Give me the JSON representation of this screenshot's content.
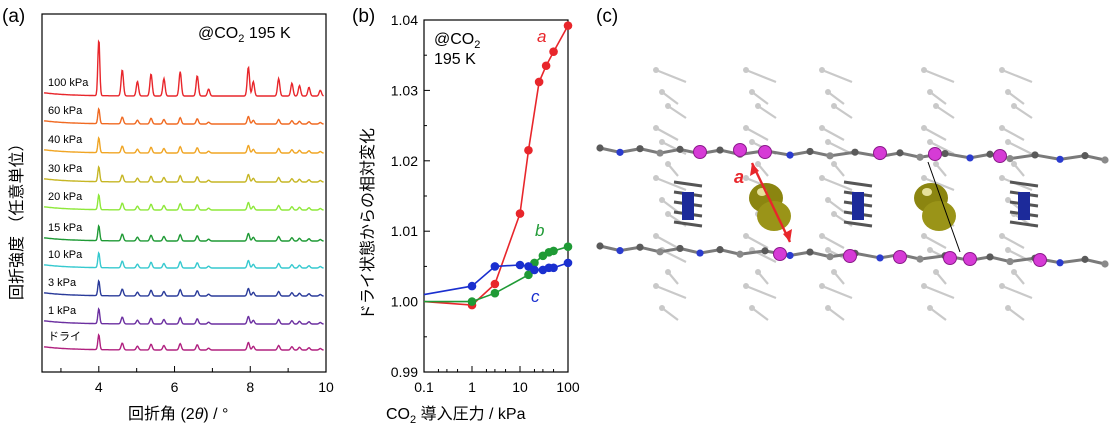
{
  "panels": {
    "a": {
      "label": "(a)",
      "annotation_main": "@CO",
      "annotation_sub": "2",
      "annotation_tail": " 195 K",
      "ylabel": "回折強度 （任意単位）",
      "xlabel_pre": "回折角 (2",
      "xlabel_theta": "θ",
      "xlabel_post": ") / °",
      "x_ticks": [
        "4",
        "6",
        "8",
        "10"
      ],
      "pressures": [
        "100 kPa",
        "60 kPa",
        "40 kPa",
        "30 kPa",
        "20 kPa",
        "15 kPa",
        "10 kPa",
        "3 kPa",
        "1 kPa",
        "ドライ"
      ],
      "trace_colors": [
        "#e8262b",
        "#f06a22",
        "#f0a524",
        "#c6b624",
        "#8ee83a",
        "#1f9a35",
        "#36c9cf",
        "#2a3b9a",
        "#6b2fa0",
        "#b0207f",
        "#e8257a"
      ]
    },
    "b": {
      "label": "(b)",
      "annotation_line1_main": "@CO",
      "annotation_line1_sub": "2",
      "annotation_line2": "195 K",
      "ylabel": "ドライ状態からの相対変化",
      "xlabel_pre": "CO",
      "xlabel_sub": "2",
      "xlabel_post": " 導入圧力 / kPa",
      "y_ticks": [
        "0.99",
        "1.00",
        "1.01",
        "1.02",
        "1.03",
        "1.04"
      ],
      "x_ticks": [
        "0.1",
        "1",
        "10",
        "100"
      ]
    },
    "c": {
      "label": "(c)",
      "arrow_label": "a",
      "arrow_color": "#e8262b"
    }
  },
  "chart_data": {
    "type": "scatter",
    "panel": "b",
    "xscale": "log",
    "xlim": [
      0.1,
      100
    ],
    "ylim": [
      0.99,
      1.04
    ],
    "series": [
      {
        "name": "a",
        "color": "#e8262b",
        "x": [
          0.1,
          1,
          3,
          10,
          15,
          25,
          35,
          50,
          100
        ],
        "y": [
          1.0,
          0.9995,
          1.0025,
          1.0125,
          1.0215,
          1.0312,
          1.0335,
          1.0355,
          1.0392
        ]
      },
      {
        "name": "b",
        "color": "#1f9a35",
        "x": [
          0.1,
          1,
          3,
          15,
          20,
          30,
          40,
          50,
          100
        ],
        "y": [
          1.0,
          1.0,
          1.0012,
          1.0038,
          1.0055,
          1.0065,
          1.007,
          1.0072,
          1.0078
        ]
      },
      {
        "name": "c",
        "color": "#1a2fcf",
        "x": [
          0.1,
          1,
          3,
          10,
          15,
          20,
          30,
          40,
          50,
          100
        ],
        "y": [
          1.001,
          1.0022,
          1.005,
          1.0052,
          1.005,
          1.0045,
          1.0045,
          1.0048,
          1.0048,
          1.0055
        ]
      }
    ]
  }
}
